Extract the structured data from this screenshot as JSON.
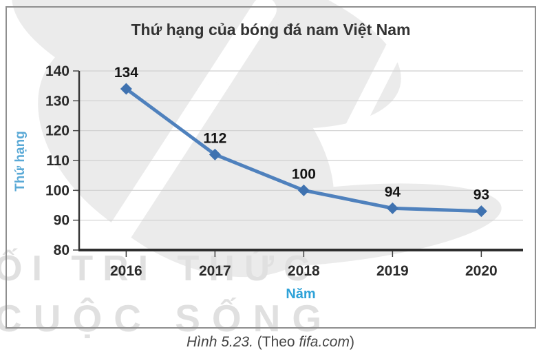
{
  "chart_data": {
    "type": "line",
    "title": "Thứ hạng của bóng đá nam Việt Nam",
    "categories": [
      "2016",
      "2017",
      "2018",
      "2019",
      "2020"
    ],
    "values": [
      134,
      112,
      100,
      94,
      93
    ],
    "xlabel": "Năm",
    "ylabel": "Thứ hạng",
    "ylim": [
      80,
      140
    ],
    "ytick_step": 10,
    "yticks": [
      80,
      90,
      100,
      110,
      120,
      130,
      140
    ],
    "grid": true,
    "legend": "none",
    "data_labels": true,
    "line_color": "#4f81bd",
    "marker": "diamond",
    "marker_color": "#3f72b0"
  },
  "caption": {
    "figure_label": "Hình 5.23.",
    "source_prefix": " (Theo ",
    "source": "fifa.com",
    "source_suffix": ")"
  },
  "watermark": {
    "line1": "ỐI TRI THỨC",
    "line2": "CUỘC SỐNG"
  },
  "colors": {
    "accent_line": "#4f81bd",
    "marker": "#3f72b0",
    "axis_title_blue": "#2ea2d8",
    "text_dark": "#2b2b2b",
    "gridline": "#cfcfcf",
    "axis": "#383838",
    "border": "#8f8f8f",
    "watermark": "#e0e0e0"
  }
}
